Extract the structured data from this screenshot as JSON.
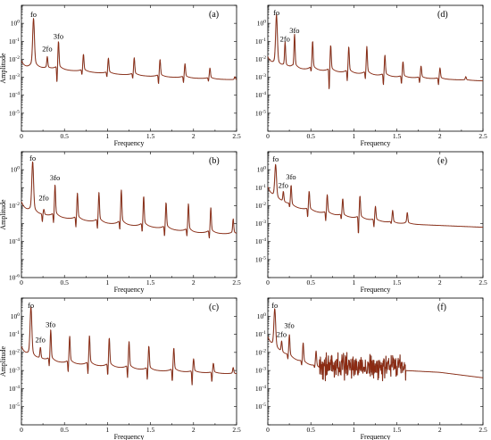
{
  "chart_data": [
    {
      "panel": "(a)",
      "type": "line",
      "xlabel": "Frequency",
      "ylabel": "Amplitude",
      "xlim": [
        0,
        2.5
      ],
      "ylim_log10": [
        -6,
        1
      ],
      "y_scale": "log",
      "grid": false,
      "x_ticks": [
        "0",
        "0.5",
        "1",
        "1.5",
        "2",
        "2.5"
      ],
      "y_ticks": [
        0,
        -1,
        -2,
        -3,
        -4,
        -5
      ],
      "baseline_log10": [
        [
          0,
          -2.7
        ],
        [
          0.15,
          -2.5
        ],
        [
          0.5,
          -2.6
        ],
        [
          1.0,
          -2.8
        ],
        [
          1.5,
          -2.95
        ],
        [
          2.0,
          -3.05
        ],
        [
          2.5,
          -3.15
        ]
      ],
      "peaks": [
        {
          "x": 0.14,
          "y_log10": -0.3,
          "dip_log10": null
        },
        {
          "x": 0.3,
          "y_log10": -2.0,
          "dip_log10": null
        },
        {
          "x": 0.43,
          "y_log10": -1.3,
          "dip_log10": -3.5
        },
        {
          "x": 0.72,
          "y_log10": -1.9,
          "dip_log10": -3.0
        },
        {
          "x": 1.01,
          "y_log10": -2.1,
          "dip_log10": -3.1
        },
        {
          "x": 1.31,
          "y_log10": -2.1,
          "dip_log10": -3.2
        },
        {
          "x": 1.61,
          "y_log10": -2.2,
          "dip_log10": -3.5
        },
        {
          "x": 1.9,
          "y_log10": -2.4,
          "dip_log10": -3.4
        },
        {
          "x": 2.19,
          "y_log10": -2.6,
          "dip_log10": -3.3
        },
        {
          "x": 2.48,
          "y_log10": -3.0,
          "dip_log10": null
        }
      ],
      "annotations": [
        {
          "text": "fo",
          "x": 0.14,
          "y_log10": 0.35
        },
        {
          "text": "2fo",
          "x": 0.3,
          "y_log10": -1.55
        },
        {
          "text": "3fo",
          "x": 0.43,
          "y_log10": -0.85
        }
      ]
    },
    {
      "panel": "(b)",
      "type": "line",
      "xlabel": "Frequency",
      "ylabel": "Amplitude",
      "xlim": [
        0,
        2.5
      ],
      "ylim_log10": [
        -6,
        1
      ],
      "y_scale": "log",
      "grid": false,
      "x_ticks": [
        "0",
        "0.5",
        "1",
        "1.5",
        "2",
        "2.5"
      ],
      "y_ticks": [
        0,
        -2,
        -4,
        -6
      ],
      "baseline_log10": [
        [
          0,
          -2.4
        ],
        [
          0.5,
          -2.7
        ],
        [
          1.0,
          -3.0
        ],
        [
          1.5,
          -3.2
        ],
        [
          2.0,
          -3.5
        ],
        [
          2.5,
          -3.6
        ]
      ],
      "peaks": [
        {
          "x": 0.13,
          "y_log10": -0.15,
          "dip_log10": null
        },
        {
          "x": 0.26,
          "y_log10": -2.3,
          "dip_log10": -3.0
        },
        {
          "x": 0.39,
          "y_log10": -1.2,
          "dip_log10": -3.2
        },
        {
          "x": 0.65,
          "y_log10": -1.6,
          "dip_log10": -3.4
        },
        {
          "x": 0.9,
          "y_log10": -1.6,
          "dip_log10": -3.5
        },
        {
          "x": 1.16,
          "y_log10": -1.5,
          "dip_log10": -3.6
        },
        {
          "x": 1.42,
          "y_log10": -1.8,
          "dip_log10": -3.7
        },
        {
          "x": 1.68,
          "y_log10": -2.1,
          "dip_log10": -3.9
        },
        {
          "x": 1.94,
          "y_log10": -2.2,
          "dip_log10": -3.9
        },
        {
          "x": 2.2,
          "y_log10": -2.4,
          "dip_log10": -4.0
        },
        {
          "x": 2.46,
          "y_log10": -2.9,
          "dip_log10": null
        }
      ],
      "annotations": [
        {
          "text": "fo",
          "x": 0.13,
          "y_log10": 0.5
        },
        {
          "text": "2fo",
          "x": 0.26,
          "y_log10": -1.7
        },
        {
          "text": "3fo",
          "x": 0.39,
          "y_log10": -0.6
        }
      ]
    },
    {
      "panel": "(c)",
      "type": "line",
      "xlabel": "Frequency",
      "ylabel": "Amplitude",
      "xlim": [
        0,
        2.5
      ],
      "ylim_log10": [
        -6,
        1
      ],
      "y_scale": "log",
      "grid": false,
      "x_ticks": [
        "0",
        "0.5",
        "1",
        "1.5",
        "2",
        "2.5"
      ],
      "y_ticks": [
        0,
        -1,
        -2,
        -3,
        -4,
        -5
      ],
      "baseline_log10": [
        [
          0,
          -2.3
        ],
        [
          0.5,
          -2.6
        ],
        [
          1.0,
          -2.8
        ],
        [
          1.5,
          -3.0
        ],
        [
          2.0,
          -3.1
        ],
        [
          2.5,
          -3.2
        ]
      ],
      "peaks": [
        {
          "x": 0.11,
          "y_log10": -0.1,
          "dip_log10": null
        },
        {
          "x": 0.22,
          "y_log10": -1.9,
          "dip_log10": null
        },
        {
          "x": 0.34,
          "y_log10": -1.1,
          "dip_log10": -3.0
        },
        {
          "x": 0.56,
          "y_log10": -1.4,
          "dip_log10": -3.3
        },
        {
          "x": 0.79,
          "y_log10": -1.4,
          "dip_log10": -3.4
        },
        {
          "x": 1.02,
          "y_log10": -1.5,
          "dip_log10": -3.5
        },
        {
          "x": 1.25,
          "y_log10": -1.7,
          "dip_log10": -3.6
        },
        {
          "x": 1.48,
          "y_log10": -1.9,
          "dip_log10": -3.7
        },
        {
          "x": 1.77,
          "y_log10": -2.0,
          "dip_log10": -3.8
        },
        {
          "x": 2.0,
          "y_log10": -2.5,
          "dip_log10": -3.9
        },
        {
          "x": 2.23,
          "y_log10": -2.7,
          "dip_log10": -3.7
        },
        {
          "x": 2.46,
          "y_log10": -2.9,
          "dip_log10": null
        }
      ],
      "annotations": [
        {
          "text": "fo",
          "x": 0.11,
          "y_log10": 0.45
        },
        {
          "text": "2fo",
          "x": 0.22,
          "y_log10": -1.45
        },
        {
          "text": "3fo",
          "x": 0.34,
          "y_log10": -0.6
        }
      ]
    },
    {
      "panel": "(d)",
      "type": "line",
      "xlabel": "Frequency",
      "ylabel": "",
      "xlim": [
        0,
        2.5
      ],
      "ylim_log10": [
        -6,
        1
      ],
      "y_scale": "log",
      "grid": false,
      "x_ticks": [
        "0",
        "0.5",
        "1",
        "1.5",
        "2",
        "2.5"
      ],
      "y_ticks": [
        0,
        -1,
        -2,
        -3,
        -4,
        -5
      ],
      "baseline_log10": [
        [
          0,
          -2.5
        ],
        [
          0.5,
          -2.6
        ],
        [
          1.0,
          -2.8
        ],
        [
          1.5,
          -3.0
        ],
        [
          2.0,
          -3.1
        ],
        [
          2.5,
          -3.2
        ]
      ],
      "peaks": [
        {
          "x": 0.1,
          "y_log10": -0.2,
          "dip_log10": null
        },
        {
          "x": 0.2,
          "y_log10": -1.4,
          "dip_log10": null
        },
        {
          "x": 0.31,
          "y_log10": -1.0,
          "dip_log10": -2.6
        },
        {
          "x": 0.52,
          "y_log10": -1.3,
          "dip_log10": -2.9
        },
        {
          "x": 0.73,
          "y_log10": -1.5,
          "dip_log10": -3.9
        },
        {
          "x": 0.94,
          "y_log10": -1.6,
          "dip_log10": -3.4
        },
        {
          "x": 1.15,
          "y_log10": -1.6,
          "dip_log10": -3.3
        },
        {
          "x": 1.36,
          "y_log10": -2.0,
          "dip_log10": -3.6
        },
        {
          "x": 1.57,
          "y_log10": -2.3,
          "dip_log10": -3.5
        },
        {
          "x": 1.78,
          "y_log10": -2.5,
          "dip_log10": -3.4
        },
        {
          "x": 2.0,
          "y_log10": -2.6,
          "dip_log10": -3.5
        },
        {
          "x": 2.3,
          "y_log10": -3.0,
          "dip_log10": null
        }
      ],
      "annotations": [
        {
          "text": "fo",
          "x": 0.1,
          "y_log10": 0.45
        },
        {
          "text": "2fo",
          "x": 0.2,
          "y_log10": -1.0
        },
        {
          "text": "3fo",
          "x": 0.31,
          "y_log10": -0.55
        }
      ]
    },
    {
      "panel": "(e)",
      "type": "line",
      "xlabel": "Frequency",
      "ylabel": "",
      "xlim": [
        0,
        2.5
      ],
      "ylim_log10": [
        -6,
        1
      ],
      "y_scale": "log",
      "grid": false,
      "x_ticks": [
        "0",
        "0.5",
        "1",
        "1.5",
        "2",
        "2.5"
      ],
      "y_ticks": [
        0,
        -1,
        -2,
        -3,
        -4,
        -5
      ],
      "baseline_log10": [
        [
          0,
          -1.6
        ],
        [
          0.3,
          -2.1
        ],
        [
          0.6,
          -2.4
        ],
        [
          1.0,
          -2.7
        ],
        [
          1.5,
          -3.0
        ],
        [
          2.0,
          -3.1
        ],
        [
          2.5,
          -3.2
        ]
      ],
      "peaks": [
        {
          "x": 0.09,
          "y_log10": -0.2,
          "dip_log10": null
        },
        {
          "x": 0.18,
          "y_log10": -1.4,
          "dip_log10": null
        },
        {
          "x": 0.27,
          "y_log10": -1.1,
          "dip_log10": -2.3
        },
        {
          "x": 0.48,
          "y_log10": -1.4,
          "dip_log10": -2.8
        },
        {
          "x": 0.69,
          "y_log10": -1.6,
          "dip_log10": -3.0
        },
        {
          "x": 0.87,
          "y_log10": -1.8,
          "dip_log10": -2.9
        },
        {
          "x": 1.07,
          "y_log10": -1.7,
          "dip_log10": -3.8
        },
        {
          "x": 1.25,
          "y_log10": -2.2,
          "dip_log10": -3.3
        },
        {
          "x": 1.45,
          "y_log10": -2.4,
          "dip_log10": -3.1
        },
        {
          "x": 1.62,
          "y_log10": -2.5,
          "dip_log10": -3.0
        }
      ],
      "annotations": [
        {
          "text": "fo",
          "x": 0.09,
          "y_log10": 0.45
        },
        {
          "text": "2fo",
          "x": 0.18,
          "y_log10": -1.0
        },
        {
          "text": "3fo",
          "x": 0.27,
          "y_log10": -0.55
        }
      ]
    },
    {
      "panel": "(f)",
      "type": "line",
      "xlabel": "Frequency",
      "ylabel": "",
      "xlim": [
        0,
        2.5
      ],
      "ylim_log10": [
        -6,
        1
      ],
      "y_scale": "log",
      "grid": false,
      "x_ticks": [
        "0",
        "0.5",
        "1",
        "1.5",
        "2",
        "2.5"
      ],
      "y_ticks": [
        0,
        -1,
        -2,
        -3,
        -4,
        -5
      ],
      "baseline_log10": [
        [
          0,
          -1.8
        ],
        [
          0.4,
          -2.6
        ],
        [
          0.6,
          -2.9
        ],
        [
          1.6,
          -3.0
        ],
        [
          2.0,
          -3.1
        ],
        [
          2.5,
          -3.4
        ]
      ],
      "peaks": [
        {
          "x": 0.08,
          "y_log10": -0.15,
          "dip_log10": null
        },
        {
          "x": 0.16,
          "y_log10": -1.6,
          "dip_log10": null
        },
        {
          "x": 0.25,
          "y_log10": -1.3,
          "dip_log10": -2.6
        },
        {
          "x": 0.41,
          "y_log10": -1.7,
          "dip_log10": -2.9
        },
        {
          "x": 0.56,
          "y_log10": -2.1,
          "dip_log10": -3.0
        }
      ],
      "noise_band": {
        "x_from": 0.6,
        "x_to": 1.6,
        "level_log10": -2.8,
        "spread": 0.9
      },
      "annotations": [
        {
          "text": "fo",
          "x": 0.08,
          "y_log10": 0.45
        },
        {
          "text": "2fo",
          "x": 0.16,
          "y_log10": -1.15
        },
        {
          "text": "3fo",
          "x": 0.25,
          "y_log10": -0.65
        }
      ]
    }
  ]
}
